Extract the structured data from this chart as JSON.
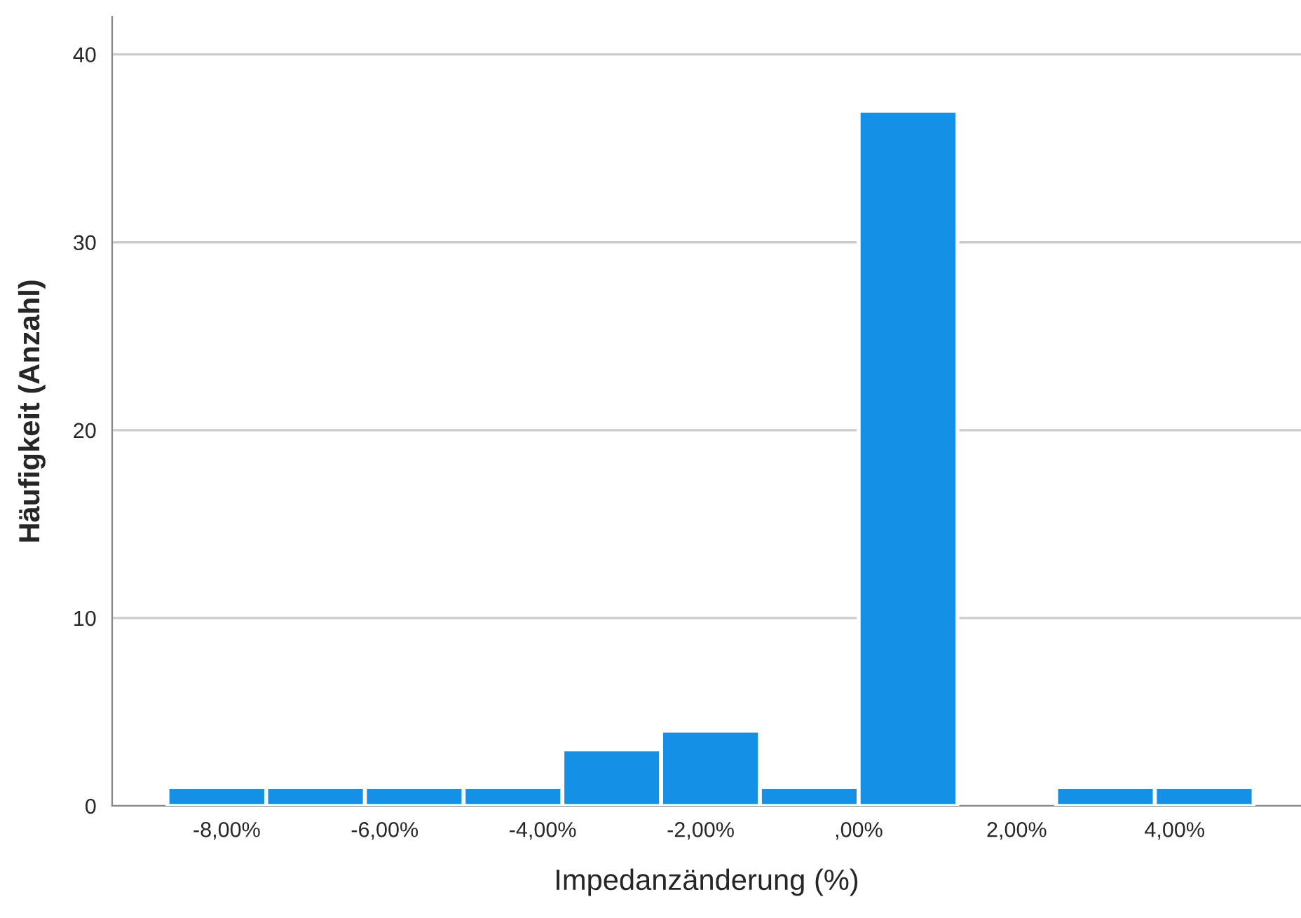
{
  "chart_data": {
    "type": "histogram",
    "xlabel": "Impedanzänderung (%)",
    "ylabel": "Häufigkeit (Anzahl)",
    "bins": [
      -8.75,
      -7.5,
      -6.25,
      -5.0,
      -3.75,
      -2.5,
      -1.25,
      0.0,
      1.25,
      2.5,
      3.75,
      5.0
    ],
    "values": [
      1,
      1,
      1,
      1,
      3,
      4,
      1,
      37,
      0,
      1,
      1
    ],
    "color": "#1490e6",
    "xlim": [
      -9.45,
      5.6
    ],
    "xticks": [
      {
        "value": -8,
        "label": "-8,00%"
      },
      {
        "value": -6,
        "label": "-6,00%"
      },
      {
        "value": -4,
        "label": "-4,00%"
      },
      {
        "value": -2,
        "label": "-2,00%"
      },
      {
        "value": 0,
        "label": ",00%"
      },
      {
        "value": 2,
        "label": "2,00%"
      },
      {
        "value": 4,
        "label": "4,00%"
      }
    ],
    "ylim": [
      0,
      42
    ],
    "yticks": [
      0,
      10,
      20,
      30,
      40
    ],
    "grid": "y"
  }
}
